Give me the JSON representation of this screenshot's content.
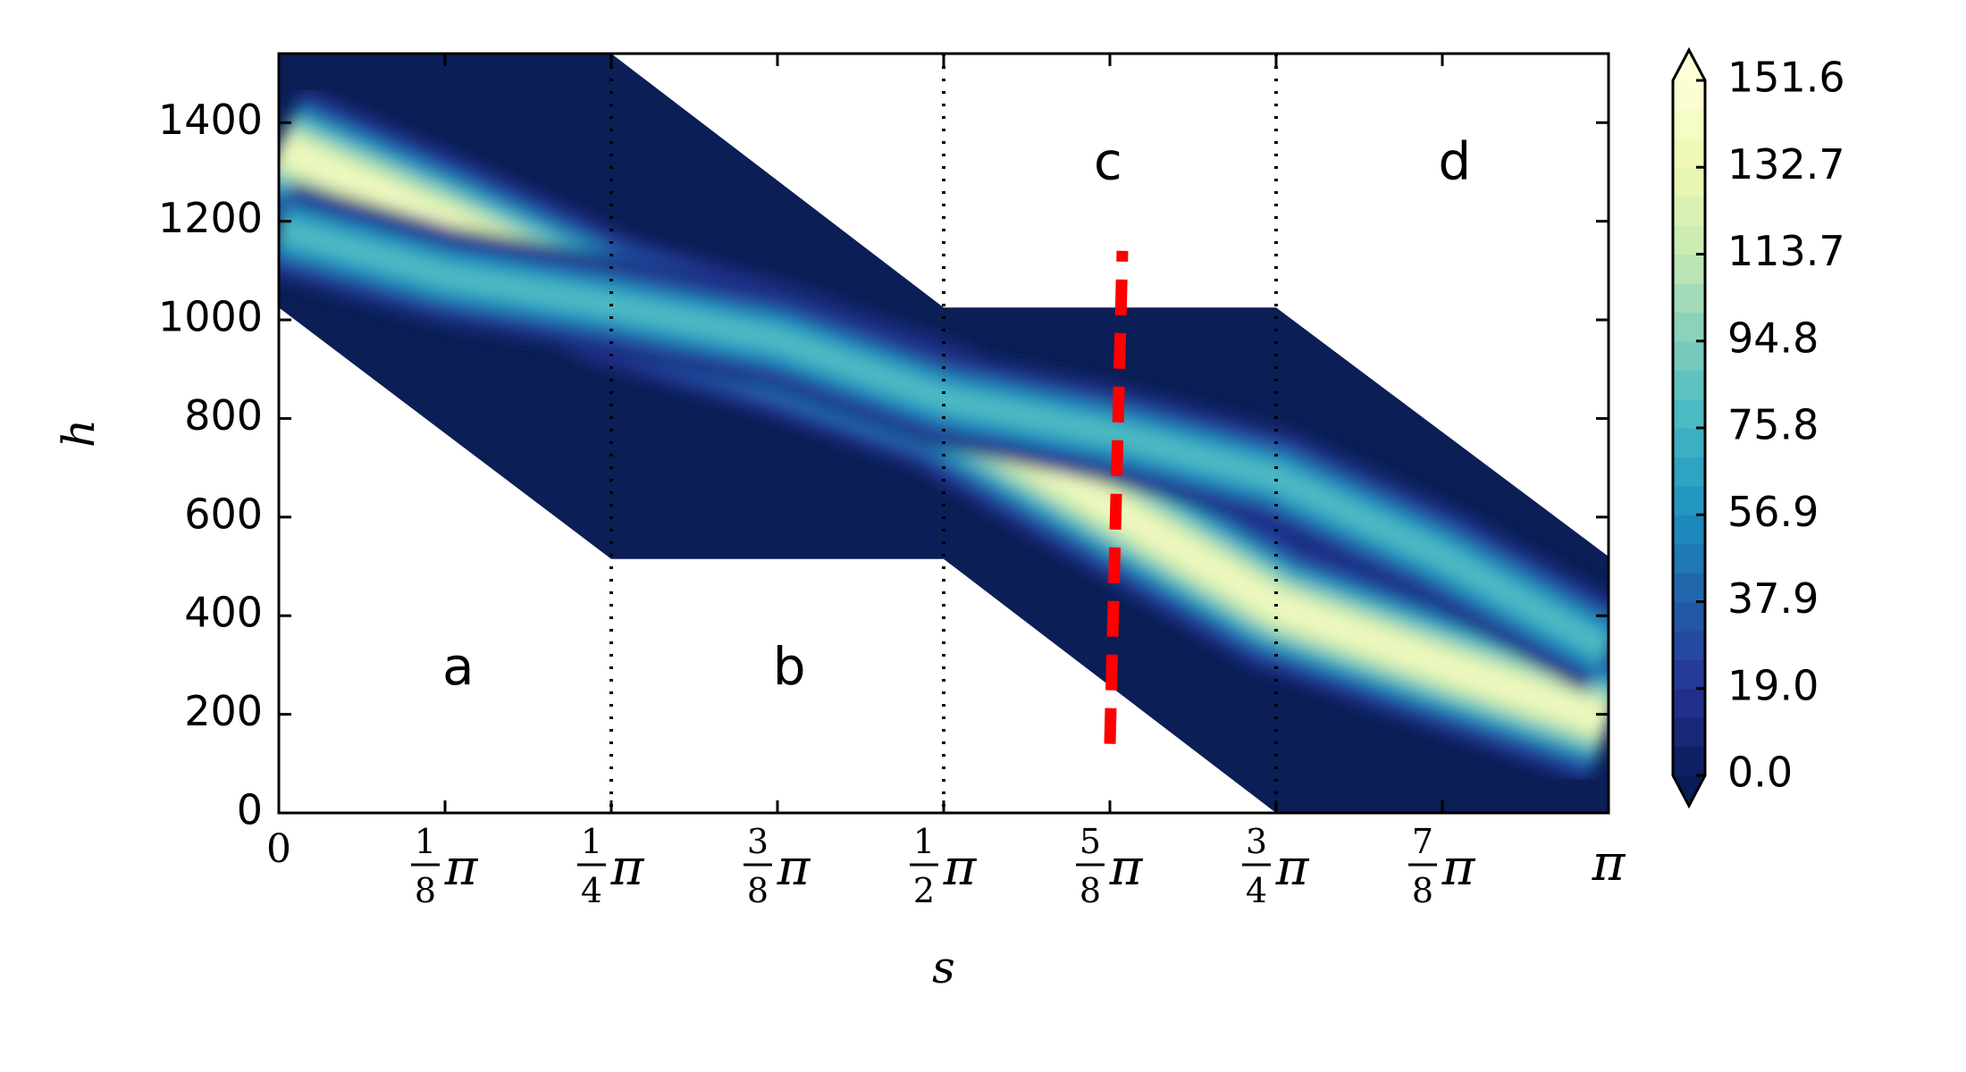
{
  "chart_data": {
    "type": "heatmap",
    "title": "",
    "xlabel": "s",
    "ylabel": "h",
    "xlim": [
      0,
      3.14159
    ],
    "ylim": [
      0,
      1540
    ],
    "x_ticks": [
      {
        "value": 0,
        "num": "",
        "den": "",
        "sym": "0"
      },
      {
        "value": 0.3927,
        "num": "1",
        "den": "8",
        "sym": "π"
      },
      {
        "value": 0.7854,
        "num": "1",
        "den": "4",
        "sym": "π"
      },
      {
        "value": 1.1781,
        "num": "3",
        "den": "8",
        "sym": "π"
      },
      {
        "value": 1.5708,
        "num": "1",
        "den": "2",
        "sym": "π"
      },
      {
        "value": 1.9635,
        "num": "5",
        "den": "8",
        "sym": "π"
      },
      {
        "value": 2.3562,
        "num": "3",
        "den": "4",
        "sym": "π"
      },
      {
        "value": 2.7489,
        "num": "7",
        "den": "8",
        "sym": "π"
      },
      {
        "value": 3.14159,
        "num": "",
        "den": "",
        "sym": "π"
      }
    ],
    "y_ticks": [
      "0",
      "200",
      "400",
      "600",
      "800",
      "1000",
      "1200",
      "1400"
    ],
    "region_labels": [
      {
        "text": "a",
        "s": 0.424,
        "h": 290
      },
      {
        "text": "b",
        "s": 1.206,
        "h": 290
      },
      {
        "text": "c",
        "s": 1.959,
        "h": 1315
      },
      {
        "text": "d",
        "s": 2.778,
        "h": 1315
      }
    ],
    "section_boundaries": [
      0.7854,
      1.5708,
      2.3562
    ],
    "domain_polygon": [
      [
        0,
        1540
      ],
      [
        0.7854,
        1540
      ],
      [
        1.5708,
        1025
      ],
      [
        2.3562,
        1025
      ],
      [
        3.14159,
        520
      ],
      [
        3.14159,
        0
      ],
      [
        2.3562,
        0
      ],
      [
        1.5708,
        515
      ],
      [
        0.7854,
        515
      ],
      [
        0,
        1025
      ]
    ],
    "bands": [
      {
        "name": "",
        "peak": 151.6,
        "width": 55,
        "path": [
          [
            0,
            1350
          ],
          [
            0.3927,
            1200
          ],
          [
            0.7854,
            1040
          ],
          [
            1.1781,
            940
          ],
          [
            1.5708,
            820
          ],
          [
            1.9635,
            620
          ],
          [
            2.3562,
            420
          ],
          [
            2.7489,
            300
          ],
          [
            3.14159,
            185
          ]
        ]
      },
      {
        "name": "",
        "peak": 88,
        "width": 42,
        "path": [
          [
            0,
            1185
          ],
          [
            0.3927,
            1090
          ],
          [
            0.7854,
            1030
          ],
          [
            1.1781,
            960
          ],
          [
            1.5708,
            840
          ],
          [
            1.9635,
            770
          ],
          [
            2.3562,
            680
          ],
          [
            2.7489,
            520
          ],
          [
            3.14159,
            330
          ]
        ]
      }
    ],
    "cut_line": {
      "color": "#ff0000",
      "style": "dashed",
      "points": [
        [
          1.9635,
          140
        ],
        [
          1.993,
          1140
        ]
      ]
    },
    "colormap": "YlGnBu",
    "colorbar": {
      "ticks": [
        "0.0",
        "19.0",
        "37.9",
        "56.9",
        "75.8",
        "94.8",
        "113.7",
        "132.7",
        "151.6"
      ],
      "extend": "both",
      "vmin": 0.0,
      "vmax": 151.6
    },
    "grid": false,
    "legend": "none"
  }
}
